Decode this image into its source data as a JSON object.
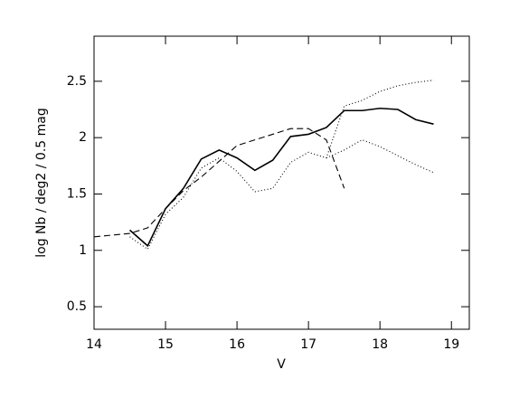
{
  "chart_data": {
    "type": "line",
    "x_label": "V",
    "y_label": "log Nb / deg2 / 0.5 mag",
    "xlim": [
      14,
      19.25
    ],
    "ylim": [
      0.3,
      2.9
    ],
    "xticks": [
      14,
      15,
      16,
      17,
      18,
      19
    ],
    "yticks": [
      0.5,
      1,
      1.5,
      2,
      2.5
    ],
    "series": [
      {
        "style": "solid",
        "color": "#000000",
        "x": [
          14.5,
          14.75,
          15,
          15.25,
          15.5,
          15.75,
          16,
          16.25,
          16.5,
          16.75,
          17,
          17.25,
          17.5,
          17.75,
          18,
          18.25,
          18.5,
          18.75
        ],
        "values": [
          1.18,
          1.04,
          1.37,
          1.55,
          1.81,
          1.89,
          1.82,
          1.71,
          1.8,
          2.01,
          2.03,
          2.09,
          2.24,
          2.24,
          2.26,
          2.25,
          2.16,
          2.12
        ]
      },
      {
        "style": "dashed",
        "color": "#000000",
        "x": [
          14,
          14.5,
          14.75,
          15,
          15.25,
          15.5,
          15.75,
          16,
          16.25,
          16.5,
          16.75,
          17,
          17.25,
          17.5
        ],
        "values": [
          1.12,
          1.15,
          1.2,
          1.37,
          1.53,
          1.65,
          1.79,
          1.93,
          1.98,
          2.03,
          2.08,
          2.08,
          1.98,
          1.55
        ]
      },
      {
        "style": "dotted",
        "color": "#000000",
        "x": [
          14.5,
          14.75,
          15,
          15.25,
          15.5,
          15.75,
          16,
          16.25,
          16.5,
          16.75,
          17,
          17.25,
          17.5,
          17.75,
          18,
          18.25,
          18.5,
          18.75
        ],
        "values": [
          1.12,
          1.01,
          1.32,
          1.47,
          1.73,
          1.82,
          1.7,
          1.52,
          1.55,
          1.78,
          1.87,
          1.82,
          2.28,
          2.33,
          2.41,
          2.46,
          2.49,
          2.51
        ]
      },
      {
        "style": "dotted",
        "color": "#000000",
        "x": [
          17.25,
          17.5,
          17.75,
          18,
          18.25,
          18.5,
          18.75
        ],
        "values": [
          1.82,
          1.89,
          1.98,
          1.92,
          1.84,
          1.76,
          1.69
        ]
      }
    ]
  }
}
